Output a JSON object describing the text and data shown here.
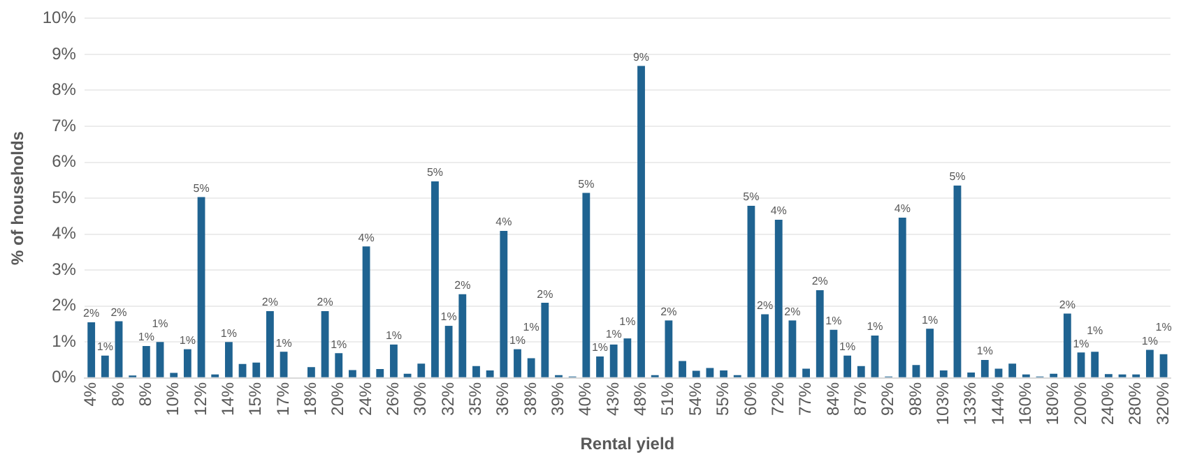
{
  "chart_data": {
    "type": "bar",
    "xlabel": "Rental yield",
    "ylabel": "% of households",
    "categories": [
      "4%",
      null,
      "8%",
      null,
      "8%",
      null,
      "10%",
      null,
      "12%",
      null,
      "14%",
      null,
      "15%",
      null,
      "17%",
      null,
      "18%",
      null,
      "20%",
      null,
      "24%",
      null,
      "26%",
      null,
      "30%",
      null,
      "32%",
      null,
      "35%",
      null,
      "36%",
      null,
      "38%",
      null,
      "39%",
      null,
      "40%",
      null,
      "43%",
      null,
      "48%",
      null,
      "51%",
      null,
      "54%",
      null,
      "55%",
      null,
      "60%",
      null,
      "72%",
      null,
      "77%",
      null,
      "84%",
      null,
      "87%",
      null,
      "92%",
      null,
      "98%",
      null,
      "103%",
      null,
      "133%",
      null,
      "144%",
      null,
      "160%",
      null,
      "180%",
      null,
      "200%",
      null,
      "240%",
      null,
      "280%",
      null,
      "320%"
    ],
    "values": [
      1.55,
      0.62,
      1.58,
      0.07,
      0.89,
      1.0,
      0.14,
      0.8,
      5.03,
      0.1,
      1.0,
      0.39,
      0.43,
      1.86,
      0.73,
      0,
      0.3,
      1.86,
      0.69,
      0.22,
      3.66,
      0.25,
      0.93,
      0.12,
      0.4,
      5.47,
      1.45,
      2.33,
      0.33,
      0.21,
      4.09,
      0.8,
      0.55,
      2.09,
      0.08,
      0.04,
      5.15,
      0.6,
      0.93,
      1.1,
      8.68,
      0.08,
      1.6,
      0.47,
      0.2,
      0.28,
      0.21,
      0.08,
      4.79,
      1.77,
      4.4,
      1.6,
      0.26,
      2.44,
      1.34,
      0.62,
      0.33,
      1.18,
      0.04,
      4.46,
      0.36,
      1.37,
      0.21,
      5.35,
      0.15,
      0.5,
      0.26,
      0.4,
      0.1,
      0.04,
      0.12,
      1.79,
      0.71,
      0.73,
      0.11,
      0.1,
      0.1,
      0.78,
      0.66
    ],
    "value_labels": [
      "2%",
      "1%",
      "2%",
      null,
      "1%",
      "1%",
      null,
      "1%",
      "5%",
      null,
      "1%",
      null,
      null,
      "2%",
      "1%",
      null,
      null,
      "2%",
      "1%",
      null,
      "4%",
      null,
      "1%",
      null,
      null,
      "5%",
      "1%",
      "2%",
      null,
      null,
      "4%",
      "1%",
      "1%",
      "2%",
      null,
      null,
      "5%",
      "1%",
      "1%",
      "1%",
      "9%",
      null,
      "2%",
      null,
      null,
      null,
      null,
      null,
      "5%",
      "2%",
      "4%",
      "2%",
      null,
      "2%",
      "1%",
      "1%",
      null,
      "1%",
      null,
      "4%",
      null,
      "1%",
      null,
      "5%",
      null,
      "1%",
      null,
      null,
      null,
      null,
      null,
      "2%",
      "1%",
      "1%",
      null,
      null,
      null,
      "1%",
      "1%"
    ],
    "color": "#1f6391",
    "ylim": [
      0,
      10
    ],
    "yticks": [
      {
        "value": 0,
        "label": "0%"
      },
      {
        "value": 1,
        "label": "1%"
      },
      {
        "value": 2,
        "label": "2%"
      },
      {
        "value": 3,
        "label": "3%"
      },
      {
        "value": 4,
        "label": "4%"
      },
      {
        "value": 5,
        "label": "5%"
      },
      {
        "value": 6,
        "label": "6%"
      },
      {
        "value": 7,
        "label": "7%"
      },
      {
        "value": 8,
        "label": "8%"
      },
      {
        "value": 9,
        "label": "9%"
      },
      {
        "value": 10,
        "label": "10%"
      }
    ],
    "grid": "y",
    "legend": false
  }
}
